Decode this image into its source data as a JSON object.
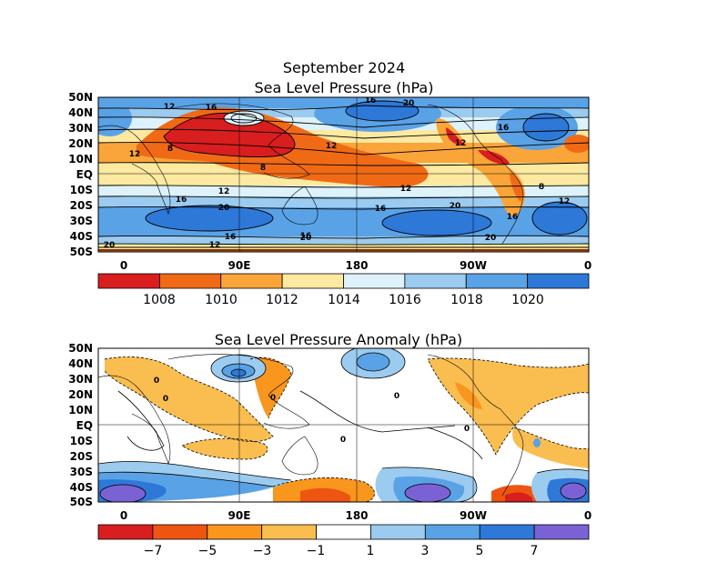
{
  "map1": {
    "title_line1": "September 2024",
    "title_line2": "Sea Level Pressure (hPa)",
    "lat_labels": [
      "50N",
      "40N",
      "30N",
      "20N",
      "10N",
      "EQ",
      "10S",
      "20S",
      "30S",
      "40S",
      "50S"
    ],
    "lon_labels": [
      "0",
      "90E",
      "180",
      "90W",
      "0"
    ],
    "contour_labels": [
      "12",
      "16",
      "16",
      "20",
      "12",
      "8",
      "12",
      "8",
      "16",
      "12",
      "16",
      "20",
      "12",
      "12",
      "16",
      "20",
      "20",
      "16",
      "12",
      "20",
      "20",
      "8",
      "16",
      "16",
      "12"
    ],
    "colorbar_labels": [
      "1008",
      "1010",
      "1012",
      "1014",
      "1016",
      "1018",
      "1020"
    ],
    "colorbar_colors": [
      "#d81e1e",
      "#f06a16",
      "#faa53a",
      "#fde9a0",
      "#ddf2fa",
      "#9ccbf0",
      "#5aa2e6",
      "#2e78d8"
    ]
  },
  "map2": {
    "title": "Sea Level Pressure Anomaly (hPa)",
    "lat_labels": [
      "50N",
      "40N",
      "30N",
      "20N",
      "10N",
      "EQ",
      "10S",
      "20S",
      "30S",
      "40S",
      "50S"
    ],
    "lon_labels": [
      "0",
      "90E",
      "180",
      "90W",
      "0"
    ],
    "contour_labels": [
      "0",
      "0",
      "0",
      "0",
      "0",
      "0"
    ],
    "colorbar_labels": [
      "−7",
      "−5",
      "−3",
      "−1",
      "1",
      "3",
      "5",
      "7"
    ],
    "colorbar_colors": [
      "#d81e1e",
      "#ee5510",
      "#f8961e",
      "#fabd50",
      "#ffffff",
      "#9ccbf0",
      "#5aa2e6",
      "#2e78d8",
      "#7b62d4"
    ]
  }
}
